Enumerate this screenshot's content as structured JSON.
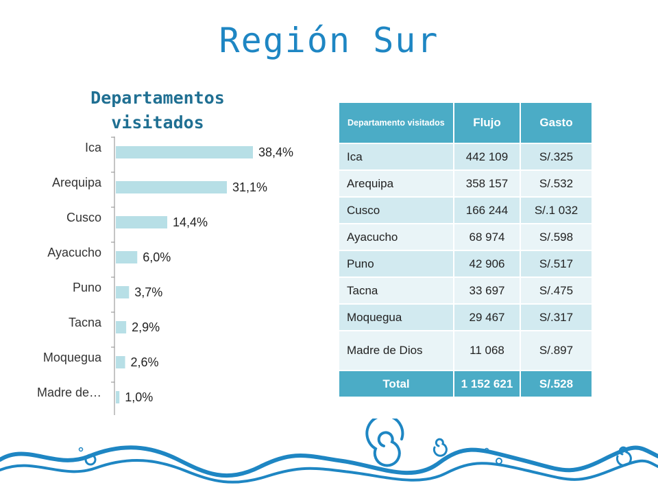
{
  "title": "Región Sur",
  "chart_data": {
    "type": "bar",
    "orientation": "horizontal",
    "title": "Departamentos visitados",
    "categories": [
      "Ica",
      "Arequipa",
      "Cusco",
      "Ayacucho",
      "Puno",
      "Tacna",
      "Moquegua",
      "Madre de…"
    ],
    "values": [
      38.4,
      31.1,
      14.4,
      6.0,
      3.7,
      2.9,
      2.6,
      1.0
    ],
    "data_labels": [
      "38,4%",
      "31,1%",
      "14,4%",
      "6,0%",
      "3,7%",
      "2,9%",
      "2,6%",
      "1,0%"
    ],
    "unit": "%",
    "xlim": [
      0,
      45
    ],
    "grid": false,
    "bar_color": "#b7dfe6"
  },
  "table": {
    "headers": [
      "Departamento visitados",
      "Flujo",
      "Gasto"
    ],
    "rows": [
      [
        "Ica",
        "442 109",
        "S/.325"
      ],
      [
        "Arequipa",
        "358 157",
        "S/.532"
      ],
      [
        "Cusco",
        "166 244",
        "S/.1 032"
      ],
      [
        "Ayacucho",
        "68 974",
        "S/.598"
      ],
      [
        "Puno",
        "42 906",
        "S/.517"
      ],
      [
        "Tacna",
        "33 697",
        "S/.475"
      ],
      [
        "Moquegua",
        "29 467",
        "S/.317"
      ],
      [
        "Madre de Dios",
        "11 068",
        "S/.897"
      ]
    ],
    "total": [
      "Total",
      "1 152 621",
      "S/.528"
    ],
    "header_color": "#4bacc6"
  }
}
